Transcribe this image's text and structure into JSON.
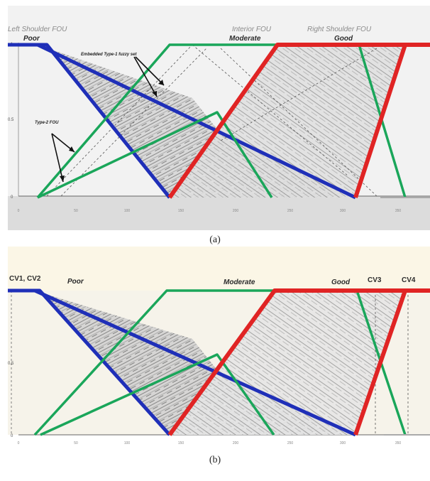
{
  "panels": [
    {
      "id": "a",
      "caption": "(a)",
      "labels": {
        "left_shoulder": "Left Shoulder FOU",
        "interior": "Interior FOU",
        "right_shoulder": "Right Shoulder FOU",
        "poor": "Poor",
        "moderate": "Moderate",
        "good": "Good",
        "embedded": "Embedded Type-1 fuzzy set",
        "type2": "Type-2 FOU"
      },
      "y_ticks": [
        "1",
        "0.5",
        "0"
      ],
      "x_ticks": [
        "0",
        "50",
        "100",
        "150",
        "200",
        "250",
        "300",
        "350",
        "400"
      ]
    },
    {
      "id": "b",
      "caption": "(b)",
      "labels": {
        "cv12": "CV1, CV2",
        "poor": "Poor",
        "moderate": "Moderate",
        "good": "Good",
        "cv3": "CV3",
        "cv4": "CV4"
      },
      "y_ticks": [
        "1",
        "0.5",
        "0"
      ],
      "x_ticks": [
        "0",
        "50",
        "100",
        "150",
        "200",
        "250",
        "300",
        "350",
        "400"
      ]
    }
  ],
  "colors": {
    "poor": "#1f2fb8",
    "moderate": "#1aa65a",
    "good": "#e02424",
    "texture": "#444444",
    "label": "#2b2b2b"
  }
}
